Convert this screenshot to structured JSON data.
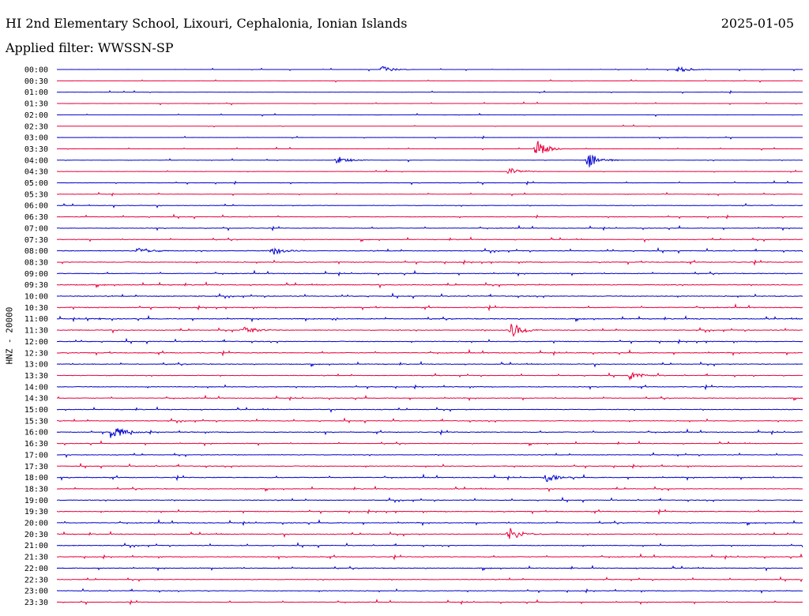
{
  "header": {
    "station": "HI 2nd Elementary School, Lixouri, Cephalonia, Ionian Islands",
    "date": "2025-01-05",
    "filter": "Applied filter: WWSSN-SP"
  },
  "colors": {
    "odd_row": "#0000cc",
    "even_row": "#e8003c",
    "text": "#000000"
  },
  "chart_data": {
    "type": "line",
    "subtype": "helicorder",
    "ylabel": "HNZ - 20000",
    "row_labels": [
      "00:00",
      "00:30",
      "01:00",
      "01:30",
      "02:00",
      "02:30",
      "03:00",
      "03:30",
      "04:00",
      "04:30",
      "05:00",
      "05:30",
      "06:00",
      "06:30",
      "07:00",
      "07:30",
      "08:00",
      "08:30",
      "09:00",
      "09:30",
      "10:00",
      "10:30",
      "11:00",
      "11:30",
      "12:00",
      "12:30",
      "13:00",
      "13:30",
      "14:00",
      "14:30",
      "15:00",
      "15:30",
      "16:00",
      "16:30",
      "17:00",
      "17:30",
      "18:00",
      "18:30",
      "19:00",
      "19:30",
      "20:00",
      "20:30",
      "21:00",
      "21:30",
      "22:00",
      "22:30",
      "23:00",
      "23:30"
    ],
    "noise_level": [
      0.08,
      0.08,
      0.1,
      0.08,
      0.08,
      0.08,
      0.08,
      0.1,
      0.12,
      0.15,
      0.2,
      0.22,
      0.3,
      0.35,
      0.35,
      0.4,
      0.5,
      0.5,
      0.45,
      0.55,
      0.5,
      0.55,
      0.55,
      0.5,
      0.5,
      0.5,
      0.45,
      0.4,
      0.45,
      0.4,
      0.45,
      0.45,
      0.45,
      0.4,
      0.4,
      0.45,
      0.5,
      0.45,
      0.45,
      0.5,
      0.5,
      0.5,
      0.45,
      0.45,
      0.45,
      0.4,
      0.4,
      0.35
    ],
    "events": [
      {
        "row": 7,
        "minute": 19.3,
        "amplitude": 12
      },
      {
        "row": 8,
        "minute": 21.4,
        "amplitude": 11
      },
      {
        "row": 8,
        "minute": 11.3,
        "amplitude": 5
      },
      {
        "row": 23,
        "minute": 18.3,
        "amplitude": 10
      },
      {
        "row": 23,
        "minute": 7.5,
        "amplitude": 6
      },
      {
        "row": 32,
        "minute": 2.2,
        "amplitude": 10
      },
      {
        "row": 41,
        "minute": 18.2,
        "amplitude": 9
      },
      {
        "row": 36,
        "minute": 19.7,
        "amplitude": 5
      },
      {
        "row": 27,
        "minute": 23.1,
        "amplitude": 5
      },
      {
        "row": 16,
        "minute": 3.3,
        "amplitude": 5
      },
      {
        "row": 16,
        "minute": 8.7,
        "amplitude": 5
      },
      {
        "row": 9,
        "minute": 18.2,
        "amplitude": 5
      },
      {
        "row": 0,
        "minute": 13.1,
        "amplitude": 4
      },
      {
        "row": 0,
        "minute": 25.0,
        "amplitude": 4
      }
    ]
  }
}
